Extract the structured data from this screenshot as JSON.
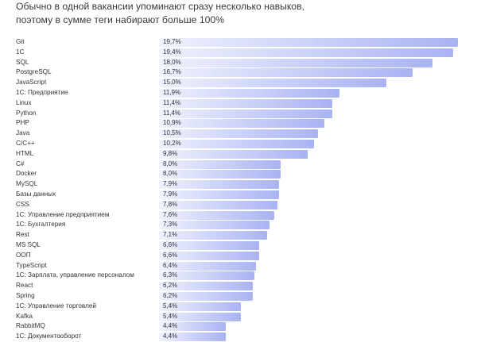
{
  "title_lines": [
    "Обычно в одной вакансии упоминают сразу несколько навыков,",
    "поэтому в сумме теги набирают больше 100%"
  ],
  "chart_data": {
    "type": "bar",
    "orientation": "horizontal",
    "title": "Обычно в одной вакансии упоминают сразу несколько навыков, поэтому в сумме теги набирают больше 100%",
    "xlabel": "",
    "ylabel": "",
    "xlim": [
      0,
      19.7
    ],
    "grid": false,
    "colors": {
      "bar_start": "#f0f2fd",
      "bar_end": "#a9b3f3"
    },
    "categories": [
      "Git",
      "1C",
      "SQL",
      "PostgreSQL",
      "JavaScript",
      "1С: Предприятие",
      "Linux",
      "Python",
      "PHP",
      "Java",
      "C/C++",
      "HTML",
      "C#",
      "Docker",
      "MySQL",
      "Базы данных",
      "CSS",
      "1С: Управление предприятием",
      "1С: Бухгалтерия",
      "Rest",
      "MS SQL",
      "ООП",
      "TypeScript",
      "1С: Зарплата, управление персоналом",
      "React",
      "Spring",
      "1С: Управление торговлей",
      "Kafka",
      "RabbitMQ",
      "1С: Документооборот"
    ],
    "values": [
      19.7,
      19.4,
      18.0,
      16.7,
      15.0,
      11.9,
      11.4,
      11.4,
      10.9,
      10.5,
      10.2,
      9.8,
      8.0,
      8.0,
      7.9,
      7.9,
      7.8,
      7.6,
      7.3,
      7.1,
      6.6,
      6.6,
      6.4,
      6.3,
      6.2,
      6.2,
      5.4,
      5.4,
      4.4,
      4.4
    ],
    "labels": [
      "19,7%",
      "19,4%",
      "18,0%",
      "16,7%",
      "15,0%",
      "11,9%",
      "11,4%",
      "11,4%",
      "10,9%",
      "10,5%",
      "10,2%",
      "9,8%",
      "8,0%",
      "8,0%",
      "7,9%",
      "7,9%",
      "7,8%",
      "7,6%",
      "7,3%",
      "7,1%",
      "6,6%",
      "6,6%",
      "6,4%",
      "6,3%",
      "6,2%",
      "6,2%",
      "5,4%",
      "5,4%",
      "4,4%",
      "4,4%"
    ]
  }
}
